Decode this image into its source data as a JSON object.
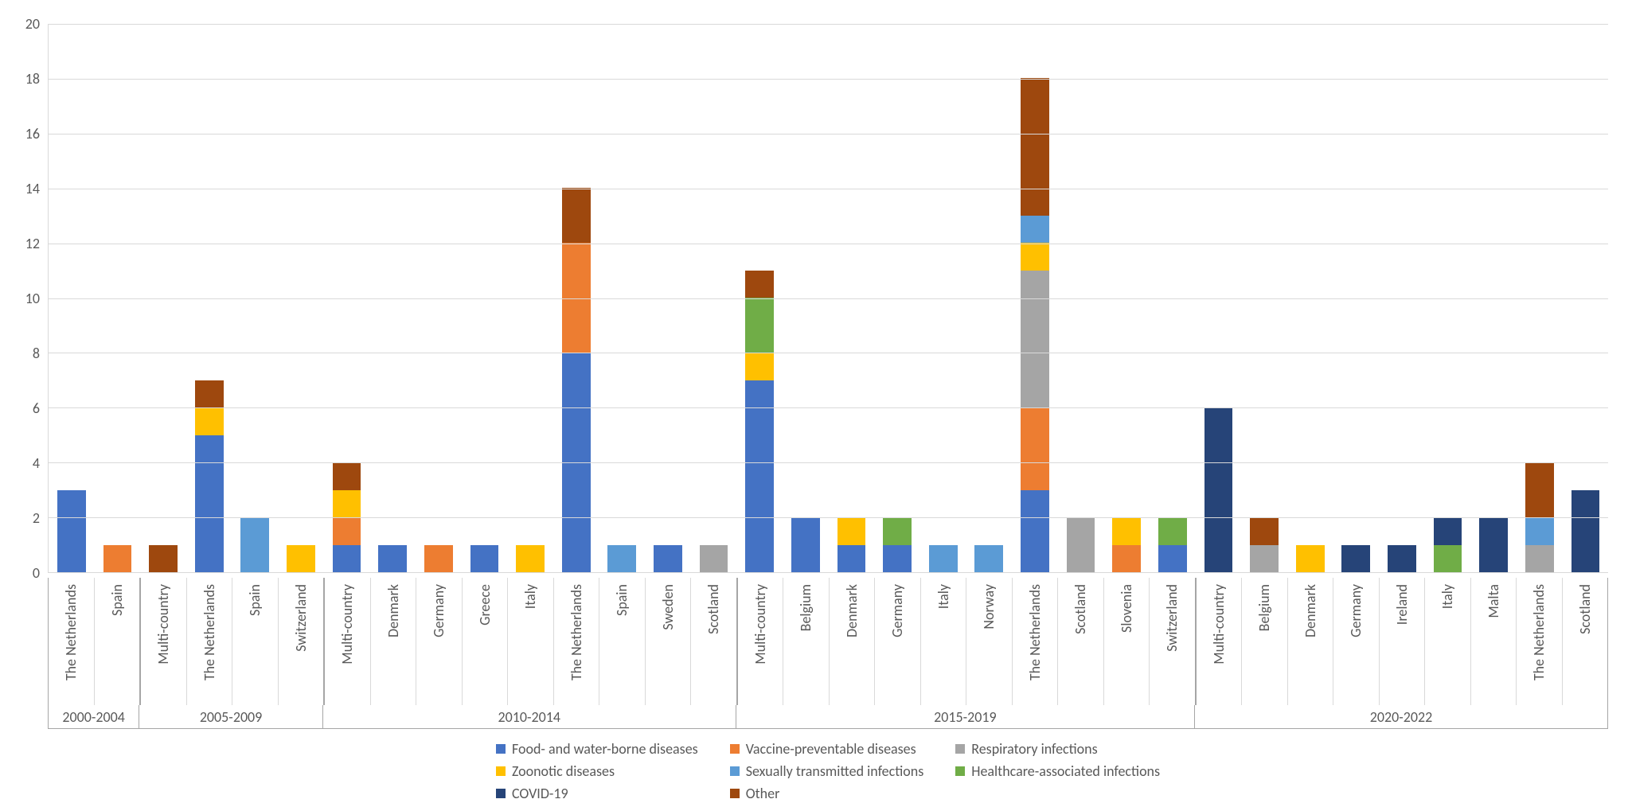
{
  "chart": {
    "type": "stacked-bar",
    "ymax": 20,
    "ytick_step": 2,
    "background_color": "#ffffff",
    "grid_color": "#d9d9d9",
    "axis_color": "#d9d9d9",
    "text_color": "#595959",
    "label_fontsize": 18,
    "series": [
      {
        "key": "food",
        "label": "Food- and water-borne diseases",
        "color": "#4472c4"
      },
      {
        "key": "vaccine",
        "label": "Vaccine-preventable diseases",
        "color": "#ed7d31"
      },
      {
        "key": "resp",
        "label": "Respiratory infections",
        "color": "#a5a5a5"
      },
      {
        "key": "zoo",
        "label": "Zoonotic diseases",
        "color": "#ffc000"
      },
      {
        "key": "sti",
        "label": "Sexually transmitted infections",
        "color": "#5b9bd5"
      },
      {
        "key": "hai",
        "label": "Healthcare-associated infections",
        "color": "#70ad47"
      },
      {
        "key": "covid",
        "label": "COVID-19",
        "color": "#264478"
      },
      {
        "key": "other",
        "label": "Other",
        "color": "#9e480e"
      }
    ],
    "groups": [
      {
        "label": "2000-2004",
        "span": 2
      },
      {
        "label": "2005-2009",
        "span": 4
      },
      {
        "label": "2010-2014",
        "span": 9
      },
      {
        "label": "2015-2019",
        "span": 10
      },
      {
        "label": "2020-2022",
        "span": 9
      }
    ],
    "bars": [
      {
        "label": "The Netherlands",
        "values": {
          "food": 3
        }
      },
      {
        "label": "Spain",
        "values": {
          "vaccine": 1
        }
      },
      {
        "label": "Multi-country",
        "values": {
          "other": 1
        }
      },
      {
        "label": "The Netherlands",
        "values": {
          "food": 5,
          "zoo": 1,
          "other": 1
        }
      },
      {
        "label": "Spain",
        "values": {
          "sti": 2
        }
      },
      {
        "label": "Switzerland",
        "values": {
          "zoo": 1
        }
      },
      {
        "label": "Multi-country",
        "values": {
          "food": 1,
          "vaccine": 1,
          "zoo": 1,
          "other": 1
        }
      },
      {
        "label": "Denmark",
        "values": {
          "food": 1
        }
      },
      {
        "label": "Germany",
        "values": {
          "vaccine": 1
        }
      },
      {
        "label": "Greece",
        "values": {
          "food": 1
        }
      },
      {
        "label": "Italy",
        "values": {
          "zoo": 1
        }
      },
      {
        "label": "The Netherlands",
        "values": {
          "food": 8,
          "vaccine": 4,
          "other": 2
        }
      },
      {
        "label": "Spain",
        "values": {
          "sti": 1
        }
      },
      {
        "label": "Sweden",
        "values": {
          "food": 1
        }
      },
      {
        "label": "Scotland",
        "values": {
          "resp": 1
        }
      },
      {
        "label": "Multi-country",
        "values": {
          "food": 7,
          "zoo": 1,
          "hai": 2,
          "other": 1
        }
      },
      {
        "label": "Belgium",
        "values": {
          "food": 2
        }
      },
      {
        "label": "Denmark",
        "values": {
          "food": 1,
          "zoo": 1
        }
      },
      {
        "label": "Germany",
        "values": {
          "food": 1,
          "hai": 1
        }
      },
      {
        "label": "Italy",
        "values": {
          "sti": 1
        }
      },
      {
        "label": "Norway",
        "values": {
          "sti": 1
        }
      },
      {
        "label": "The Netherlands",
        "values": {
          "food": 3,
          "vaccine": 3,
          "resp": 5,
          "zoo": 1,
          "sti": 1,
          "other": 5
        }
      },
      {
        "label": "Scotland",
        "values": {
          "resp": 2
        }
      },
      {
        "label": "Slovenia",
        "values": {
          "vaccine": 1,
          "zoo": 1
        }
      },
      {
        "label": "Switzerland",
        "values": {
          "food": 1,
          "hai": 1
        }
      },
      {
        "label": "Multi-country",
        "values": {
          "covid": 6
        }
      },
      {
        "label": "Belgium",
        "values": {
          "resp": 1,
          "other": 1
        }
      },
      {
        "label": "Denmark",
        "values": {
          "zoo": 1
        }
      },
      {
        "label": "Germany",
        "values": {
          "covid": 1
        }
      },
      {
        "label": "Ireland",
        "values": {
          "covid": 1
        }
      },
      {
        "label": "Italy",
        "values": {
          "hai": 1,
          "covid": 1
        }
      },
      {
        "label": "Malta",
        "values": {
          "covid": 2
        }
      },
      {
        "label": "The Netherlands",
        "values": {
          "sti": 1,
          "resp": 1,
          "other": 2
        }
      },
      {
        "label": "Scotland",
        "values": {
          "covid": 3
        }
      }
    ]
  }
}
